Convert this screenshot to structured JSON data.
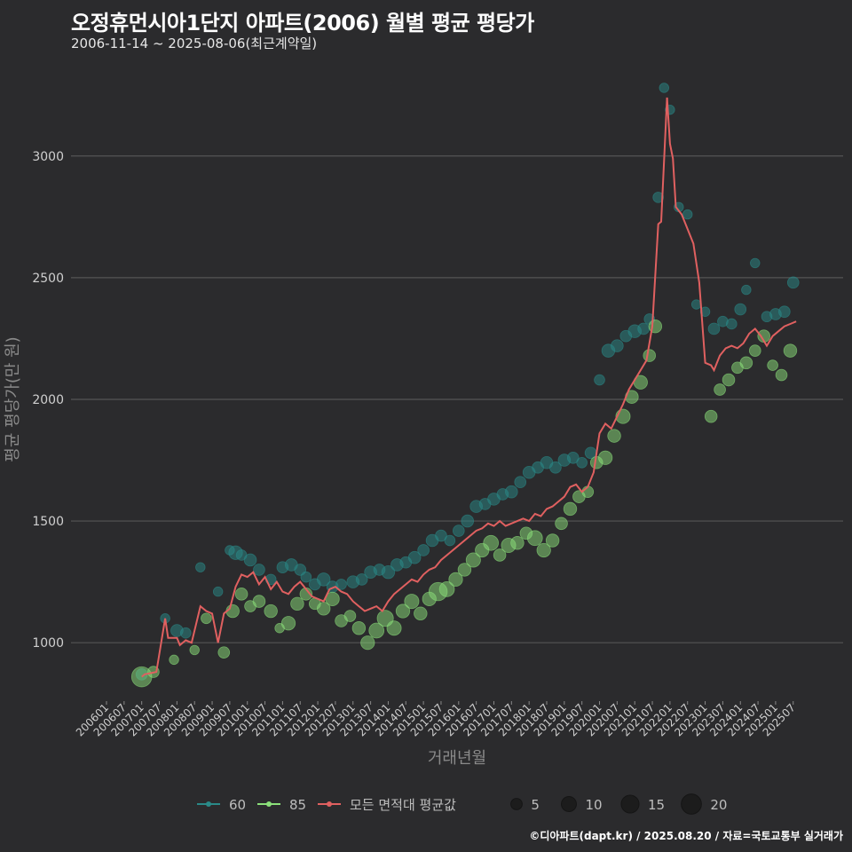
{
  "header": {
    "title": "오정휴먼시아1단지 아파트(2006) 월별 평균 평당가",
    "subtitle": "2006-11-14 ~ 2025-08-06(최근계약일)"
  },
  "footer": {
    "credit": "©디아파트(dapt.kr) / 2025.08.20 / 자료=국토교통부 실거래가"
  },
  "colors": {
    "background": "#2b2b2d",
    "grid": "#555555",
    "s60": "#2a8a88",
    "s85": "#8be07a",
    "avg": "#e06060"
  },
  "chart_data": {
    "type": "scatter",
    "xlabel": "거래년월",
    "ylabel": "평균 평당가(만 원)",
    "ylim": [
      760,
      3320
    ],
    "yticks": [
      1000,
      1500,
      2000,
      2500,
      3000
    ],
    "x_tick_labels": [
      "200601",
      "200607",
      "200701",
      "200707",
      "200801",
      "200807",
      "200901",
      "200907",
      "201001",
      "201007",
      "201101",
      "201107",
      "201201",
      "201207",
      "201301",
      "201307",
      "201401",
      "201407",
      "201501",
      "201507",
      "201601",
      "201607",
      "201701",
      "201707",
      "201801",
      "201807",
      "201901",
      "201907",
      "202001",
      "202007",
      "202101",
      "202107",
      "202201",
      "202207",
      "202301",
      "202307",
      "202401",
      "202407",
      "202501",
      "202507"
    ],
    "legend": {
      "series": [
        {
          "key": "60",
          "label": "60"
        },
        {
          "key": "85",
          "label": "85"
        },
        {
          "key": "avg",
          "label": "모든 면적대 평균값"
        }
      ],
      "sizes": [
        5,
        10,
        15,
        20
      ],
      "placement": "bottom"
    },
    "series_60": [
      [
        "2007-01",
        870,
        5
      ],
      [
        "2007-09",
        1100,
        3
      ],
      [
        "2008-01",
        1050,
        6
      ],
      [
        "2008-04",
        1040,
        4
      ],
      [
        "2008-09",
        1310,
        3
      ],
      [
        "2009-03",
        1210,
        3
      ],
      [
        "2009-07",
        1380,
        3
      ],
      [
        "2009-09",
        1370,
        8
      ],
      [
        "2009-11",
        1360,
        4
      ],
      [
        "2010-02",
        1340,
        6
      ],
      [
        "2010-05",
        1300,
        5
      ],
      [
        "2010-09",
        1260,
        4
      ],
      [
        "2011-01",
        1310,
        5
      ],
      [
        "2011-04",
        1320,
        6
      ],
      [
        "2011-07",
        1300,
        5
      ],
      [
        "2011-09",
        1270,
        4
      ],
      [
        "2011-12",
        1240,
        5
      ],
      [
        "2012-03",
        1260,
        7
      ],
      [
        "2012-06",
        1230,
        5
      ],
      [
        "2012-09",
        1240,
        4
      ],
      [
        "2013-01",
        1250,
        6
      ],
      [
        "2013-04",
        1260,
        5
      ],
      [
        "2013-07",
        1290,
        6
      ],
      [
        "2013-10",
        1300,
        5
      ],
      [
        "2014-01",
        1290,
        7
      ],
      [
        "2014-04",
        1320,
        6
      ],
      [
        "2014-07",
        1330,
        5
      ],
      [
        "2014-10",
        1350,
        6
      ],
      [
        "2015-01",
        1380,
        5
      ],
      [
        "2015-04",
        1420,
        6
      ],
      [
        "2015-07",
        1440,
        5
      ],
      [
        "2015-10",
        1420,
        4
      ],
      [
        "2016-01",
        1460,
        5
      ],
      [
        "2016-04",
        1500,
        6
      ],
      [
        "2016-07",
        1560,
        6
      ],
      [
        "2016-10",
        1570,
        5
      ],
      [
        "2017-01",
        1590,
        6
      ],
      [
        "2017-04",
        1610,
        5
      ],
      [
        "2017-07",
        1620,
        6
      ],
      [
        "2017-10",
        1660,
        5
      ],
      [
        "2018-01",
        1700,
        6
      ],
      [
        "2018-04",
        1720,
        5
      ],
      [
        "2018-07",
        1740,
        6
      ],
      [
        "2018-10",
        1720,
        5
      ],
      [
        "2019-01",
        1750,
        6
      ],
      [
        "2019-04",
        1760,
        5
      ],
      [
        "2019-07",
        1740,
        4
      ],
      [
        "2019-10",
        1780,
        5
      ],
      [
        "2020-01",
        2080,
        4
      ],
      [
        "2020-04",
        2200,
        7
      ],
      [
        "2020-07",
        2220,
        6
      ],
      [
        "2020-10",
        2260,
        5
      ],
      [
        "2021-01",
        2280,
        7
      ],
      [
        "2021-04",
        2290,
        5
      ],
      [
        "2021-06",
        2330,
        4
      ],
      [
        "2021-09",
        2830,
        4
      ],
      [
        "2021-11",
        3280,
        3
      ],
      [
        "2022-01",
        3190,
        3
      ],
      [
        "2022-04",
        2790,
        3
      ],
      [
        "2022-07",
        2760,
        3
      ],
      [
        "2022-10",
        2390,
        3
      ],
      [
        "2023-01",
        2360,
        3
      ],
      [
        "2023-04",
        2290,
        5
      ],
      [
        "2023-07",
        2320,
        4
      ],
      [
        "2023-10",
        2310,
        4
      ],
      [
        "2024-01",
        2370,
        5
      ],
      [
        "2024-03",
        2450,
        3
      ],
      [
        "2024-06",
        2560,
        3
      ],
      [
        "2024-10",
        2340,
        4
      ],
      [
        "2025-01",
        2350,
        5
      ],
      [
        "2025-04",
        2360,
        5
      ],
      [
        "2025-07",
        2480,
        5
      ]
    ],
    "series_85": [
      [
        "2007-01",
        860,
        20
      ],
      [
        "2007-05",
        880,
        5
      ],
      [
        "2007-12",
        930,
        3
      ],
      [
        "2008-07",
        970,
        3
      ],
      [
        "2008-11",
        1100,
        4
      ],
      [
        "2009-05",
        960,
        5
      ],
      [
        "2009-08",
        1130,
        7
      ],
      [
        "2009-11",
        1200,
        6
      ],
      [
        "2010-02",
        1150,
        5
      ],
      [
        "2010-05",
        1170,
        6
      ],
      [
        "2010-09",
        1130,
        7
      ],
      [
        "2010-12",
        1060,
        3
      ],
      [
        "2011-03",
        1080,
        8
      ],
      [
        "2011-06",
        1160,
        7
      ],
      [
        "2011-09",
        1200,
        6
      ],
      [
        "2011-12",
        1160,
        5
      ],
      [
        "2012-03",
        1140,
        7
      ],
      [
        "2012-06",
        1180,
        8
      ],
      [
        "2012-09",
        1090,
        6
      ],
      [
        "2012-12",
        1110,
        5
      ],
      [
        "2013-03",
        1060,
        7
      ],
      [
        "2013-06",
        1000,
        8
      ],
      [
        "2013-09",
        1050,
        10
      ],
      [
        "2013-12",
        1100,
        12
      ],
      [
        "2014-03",
        1060,
        9
      ],
      [
        "2014-06",
        1130,
        8
      ],
      [
        "2014-09",
        1170,
        9
      ],
      [
        "2014-12",
        1120,
        7
      ],
      [
        "2015-03",
        1180,
        8
      ],
      [
        "2015-06",
        1210,
        16
      ],
      [
        "2015-09",
        1220,
        10
      ],
      [
        "2015-12",
        1260,
        8
      ],
      [
        "2016-03",
        1300,
        7
      ],
      [
        "2016-06",
        1340,
        9
      ],
      [
        "2016-09",
        1380,
        8
      ],
      [
        "2016-12",
        1410,
        10
      ],
      [
        "2017-03",
        1360,
        6
      ],
      [
        "2017-06",
        1400,
        9
      ],
      [
        "2017-09",
        1410,
        7
      ],
      [
        "2017-12",
        1450,
        6
      ],
      [
        "2018-03",
        1430,
        10
      ],
      [
        "2018-06",
        1380,
        8
      ],
      [
        "2018-09",
        1420,
        7
      ],
      [
        "2018-12",
        1490,
        6
      ],
      [
        "2019-03",
        1550,
        7
      ],
      [
        "2019-06",
        1600,
        6
      ],
      [
        "2019-09",
        1620,
        5
      ],
      [
        "2019-12",
        1740,
        6
      ],
      [
        "2020-03",
        1760,
        8
      ],
      [
        "2020-06",
        1850,
        7
      ],
      [
        "2020-09",
        1930,
        9
      ],
      [
        "2020-12",
        2010,
        7
      ],
      [
        "2021-03",
        2070,
        8
      ],
      [
        "2021-06",
        2180,
        6
      ],
      [
        "2021-08",
        2300,
        7
      ],
      [
        "2023-03",
        1930,
        6
      ],
      [
        "2023-06",
        2040,
        5
      ],
      [
        "2023-09",
        2080,
        6
      ],
      [
        "2023-12",
        2130,
        5
      ],
      [
        "2024-03",
        2150,
        6
      ],
      [
        "2024-06",
        2200,
        5
      ],
      [
        "2024-09",
        2260,
        6
      ],
      [
        "2024-12",
        2140,
        4
      ],
      [
        "2025-03",
        2100,
        5
      ],
      [
        "2025-06",
        2200,
        7
      ]
    ],
    "series_avg": [
      [
        "2007-01",
        860
      ],
      [
        "2007-02",
        870
      ],
      [
        "2007-04",
        875
      ],
      [
        "2007-06",
        880
      ],
      [
        "2007-09",
        1100
      ],
      [
        "2007-10",
        1020
      ],
      [
        "2008-01",
        1020
      ],
      [
        "2008-02",
        990
      ],
      [
        "2008-04",
        1010
      ],
      [
        "2008-06",
        1000
      ],
      [
        "2008-09",
        1150
      ],
      [
        "2008-11",
        1130
      ],
      [
        "2009-01",
        1120
      ],
      [
        "2009-03",
        1000
      ],
      [
        "2009-05",
        1120
      ],
      [
        "2009-07",
        1140
      ],
      [
        "2009-09",
        1230
      ],
      [
        "2009-11",
        1280
      ],
      [
        "2010-01",
        1270
      ],
      [
        "2010-03",
        1290
      ],
      [
        "2010-05",
        1240
      ],
      [
        "2010-07",
        1270
      ],
      [
        "2010-09",
        1220
      ],
      [
        "2010-11",
        1250
      ],
      [
        "2011-01",
        1210
      ],
      [
        "2011-03",
        1200
      ],
      [
        "2011-05",
        1230
      ],
      [
        "2011-07",
        1250
      ],
      [
        "2011-09",
        1220
      ],
      [
        "2011-11",
        1190
      ],
      [
        "2012-01",
        1180
      ],
      [
        "2012-03",
        1170
      ],
      [
        "2012-05",
        1220
      ],
      [
        "2012-07",
        1230
      ],
      [
        "2012-09",
        1210
      ],
      [
        "2012-11",
        1200
      ],
      [
        "2013-01",
        1170
      ],
      [
        "2013-03",
        1150
      ],
      [
        "2013-05",
        1130
      ],
      [
        "2013-07",
        1140
      ],
      [
        "2013-09",
        1150
      ],
      [
        "2013-11",
        1130
      ],
      [
        "2014-01",
        1170
      ],
      [
        "2014-03",
        1200
      ],
      [
        "2014-05",
        1220
      ],
      [
        "2014-07",
        1240
      ],
      [
        "2014-09",
        1260
      ],
      [
        "2014-11",
        1250
      ],
      [
        "2015-01",
        1280
      ],
      [
        "2015-03",
        1300
      ],
      [
        "2015-05",
        1310
      ],
      [
        "2015-07",
        1340
      ],
      [
        "2015-09",
        1360
      ],
      [
        "2015-11",
        1380
      ],
      [
        "2016-01",
        1400
      ],
      [
        "2016-03",
        1420
      ],
      [
        "2016-05",
        1440
      ],
      [
        "2016-07",
        1460
      ],
      [
        "2016-09",
        1470
      ],
      [
        "2016-11",
        1490
      ],
      [
        "2017-01",
        1480
      ],
      [
        "2017-03",
        1500
      ],
      [
        "2017-05",
        1480
      ],
      [
        "2017-07",
        1490
      ],
      [
        "2017-09",
        1500
      ],
      [
        "2017-11",
        1510
      ],
      [
        "2018-01",
        1500
      ],
      [
        "2018-03",
        1530
      ],
      [
        "2018-05",
        1520
      ],
      [
        "2018-07",
        1550
      ],
      [
        "2018-09",
        1560
      ],
      [
        "2018-11",
        1580
      ],
      [
        "2019-01",
        1600
      ],
      [
        "2019-03",
        1640
      ],
      [
        "2019-05",
        1650
      ],
      [
        "2019-07",
        1620
      ],
      [
        "2019-09",
        1640
      ],
      [
        "2019-11",
        1700
      ],
      [
        "2020-01",
        1860
      ],
      [
        "2020-03",
        1900
      ],
      [
        "2020-05",
        1880
      ],
      [
        "2020-07",
        1930
      ],
      [
        "2020-09",
        1980
      ],
      [
        "2020-11",
        2040
      ],
      [
        "2021-01",
        2080
      ],
      [
        "2021-03",
        2120
      ],
      [
        "2021-05",
        2160
      ],
      [
        "2021-07",
        2300
      ],
      [
        "2021-09",
        2720
      ],
      [
        "2021-10",
        2730
      ],
      [
        "2021-12",
        3240
      ],
      [
        "2022-01",
        3050
      ],
      [
        "2022-02",
        2990
      ],
      [
        "2022-03",
        2790
      ],
      [
        "2022-05",
        2760
      ],
      [
        "2022-07",
        2700
      ],
      [
        "2022-09",
        2640
      ],
      [
        "2022-11",
        2480
      ],
      [
        "2023-01",
        2150
      ],
      [
        "2023-03",
        2140
      ],
      [
        "2023-04",
        2120
      ],
      [
        "2023-06",
        2180
      ],
      [
        "2023-08",
        2210
      ],
      [
        "2023-10",
        2220
      ],
      [
        "2023-12",
        2210
      ],
      [
        "2024-02",
        2230
      ],
      [
        "2024-04",
        2270
      ],
      [
        "2024-06",
        2290
      ],
      [
        "2024-08",
        2260
      ],
      [
        "2024-10",
        2220
      ],
      [
        "2024-12",
        2260
      ],
      [
        "2025-02",
        2280
      ],
      [
        "2025-04",
        2300
      ],
      [
        "2025-06",
        2310
      ],
      [
        "2025-08",
        2320
      ]
    ]
  }
}
